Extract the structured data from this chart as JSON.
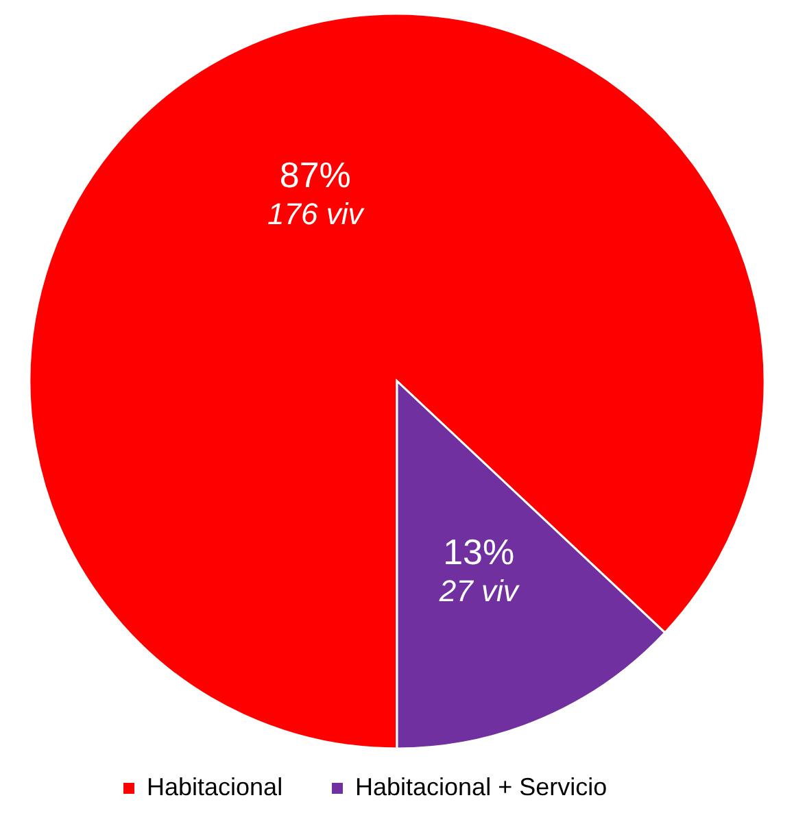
{
  "chart_data": {
    "type": "pie",
    "categories": [
      "Habitacional",
      "Habitacional + Servicio"
    ],
    "values": [
      87,
      13
    ],
    "colors": [
      "#ff0000",
      "#7030a0"
    ],
    "value_labels": [
      "87%\n176 viv",
      "13%\n27 viv"
    ],
    "legend": "bottom"
  }
}
